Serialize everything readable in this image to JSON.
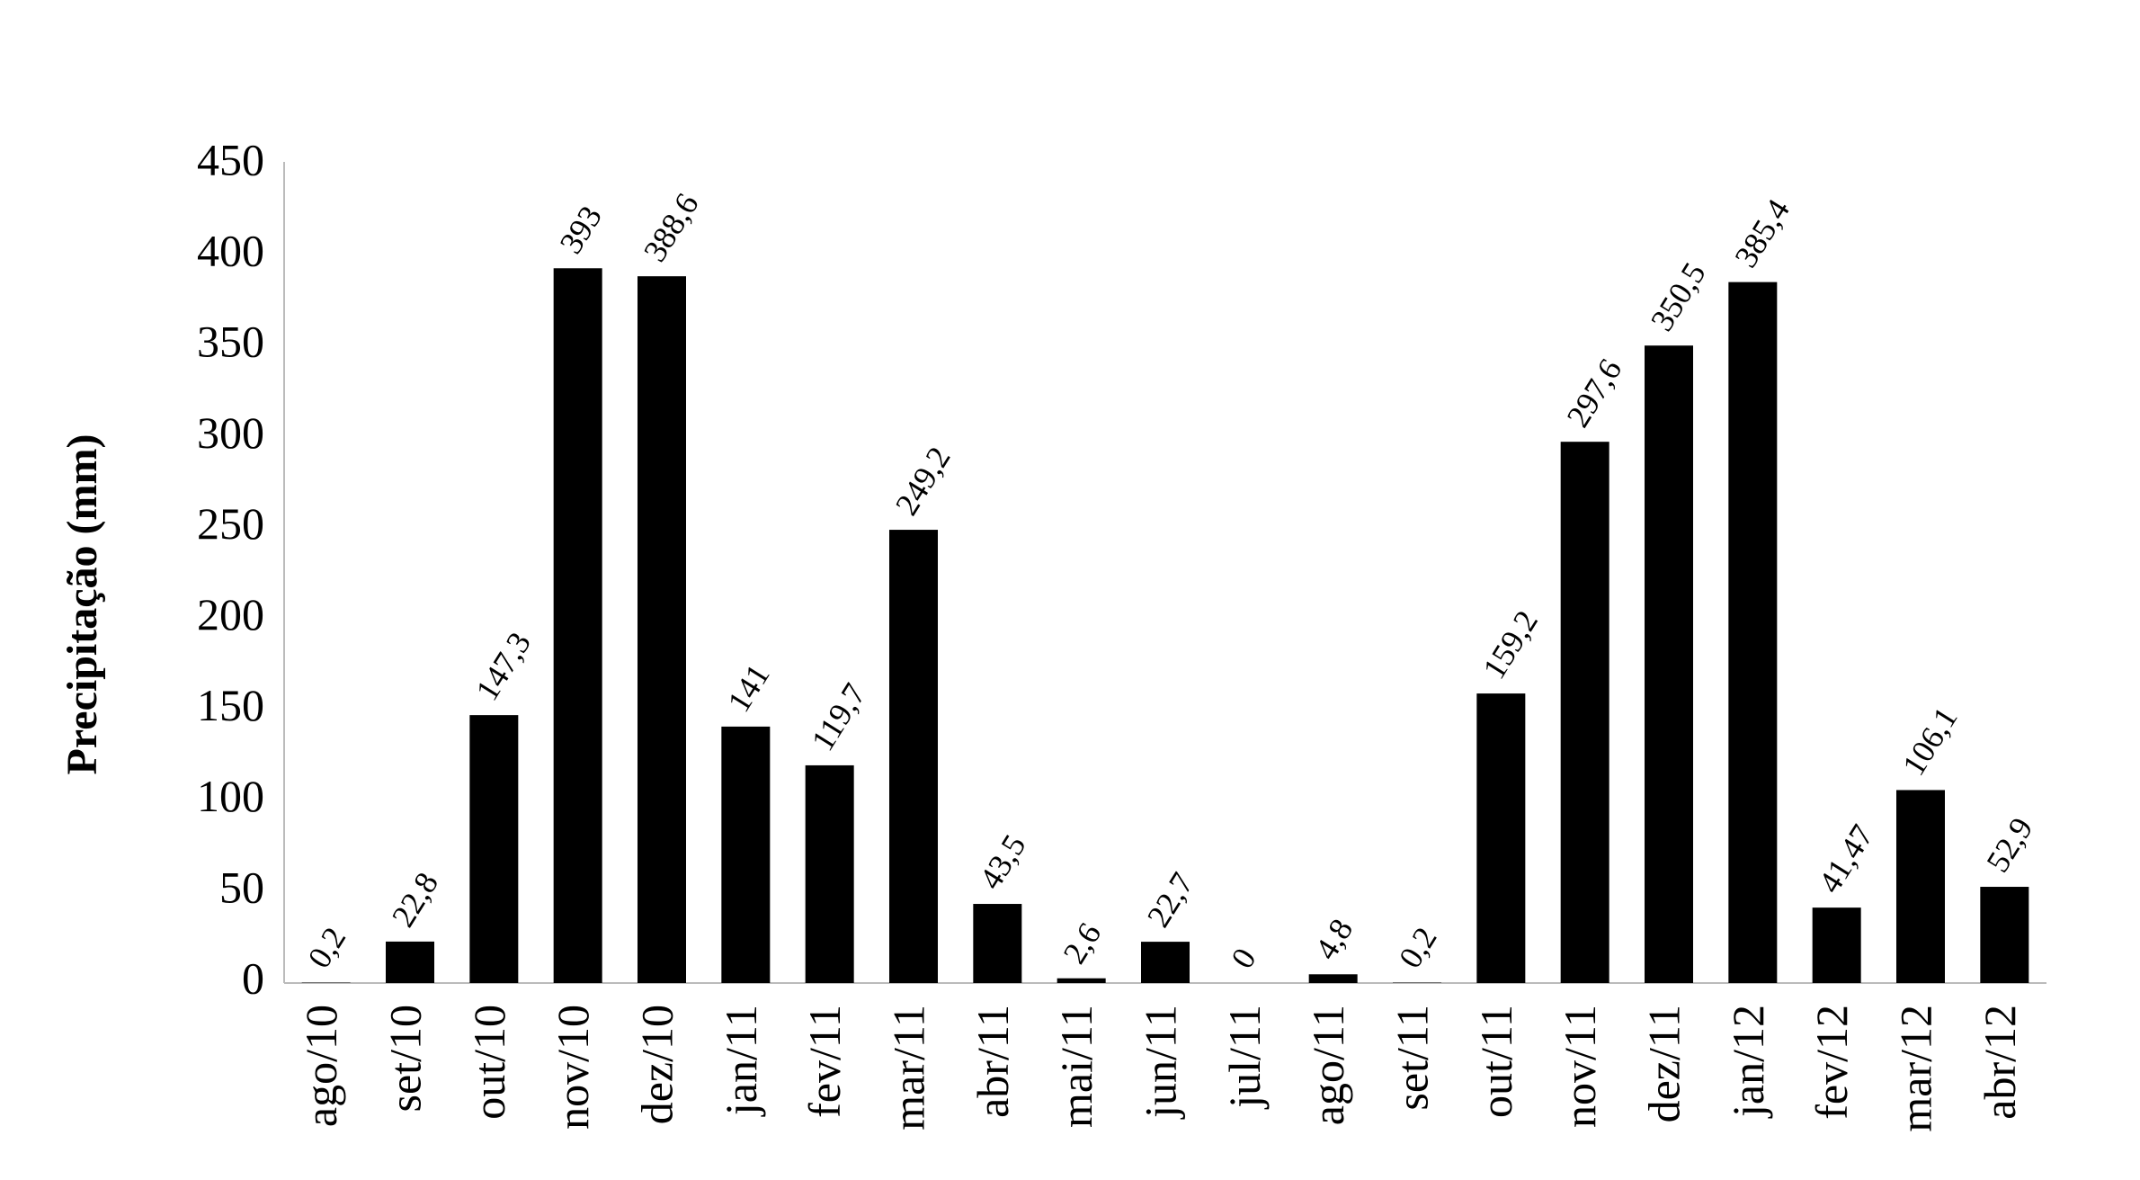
{
  "chart_data": {
    "type": "bar",
    "y_label": "Precipitação (mm)",
    "categories": [
      "ago/10",
      "set/10",
      "out/10",
      "nov/10",
      "dez/10",
      "jan/11",
      "fev/11",
      "mar/11",
      "abr/11",
      "mai/11",
      "jun/11",
      "jul/11",
      "ago/11",
      "set/11",
      "out/11",
      "nov/11",
      "dez/11",
      "jan/12",
      "fev/12",
      "mar/12",
      "abr/12"
    ],
    "values": [
      0.2,
      22.8,
      147.3,
      393,
      388.6,
      141,
      119.7,
      249.2,
      43.5,
      2.6,
      22.7,
      0,
      4.8,
      0.2,
      159.2,
      297.6,
      350.5,
      385.4,
      41.47,
      106.1,
      52.9
    ],
    "value_labels": [
      "0,2",
      "22,8",
      "147,3",
      "393",
      "388,6",
      "141",
      "119,7",
      "249,2",
      "43,5",
      "2,6",
      "22,7",
      "0",
      "4,8",
      "0,2",
      "159,2",
      "297,6",
      "350,5",
      "385,4",
      "41,47",
      "106,1",
      "52,9"
    ],
    "color": "#000000",
    "ylim": [
      0,
      450
    ],
    "yticks": [
      0,
      50,
      100,
      150,
      200,
      250,
      300,
      350,
      400,
      450
    ],
    "grid": false
  }
}
